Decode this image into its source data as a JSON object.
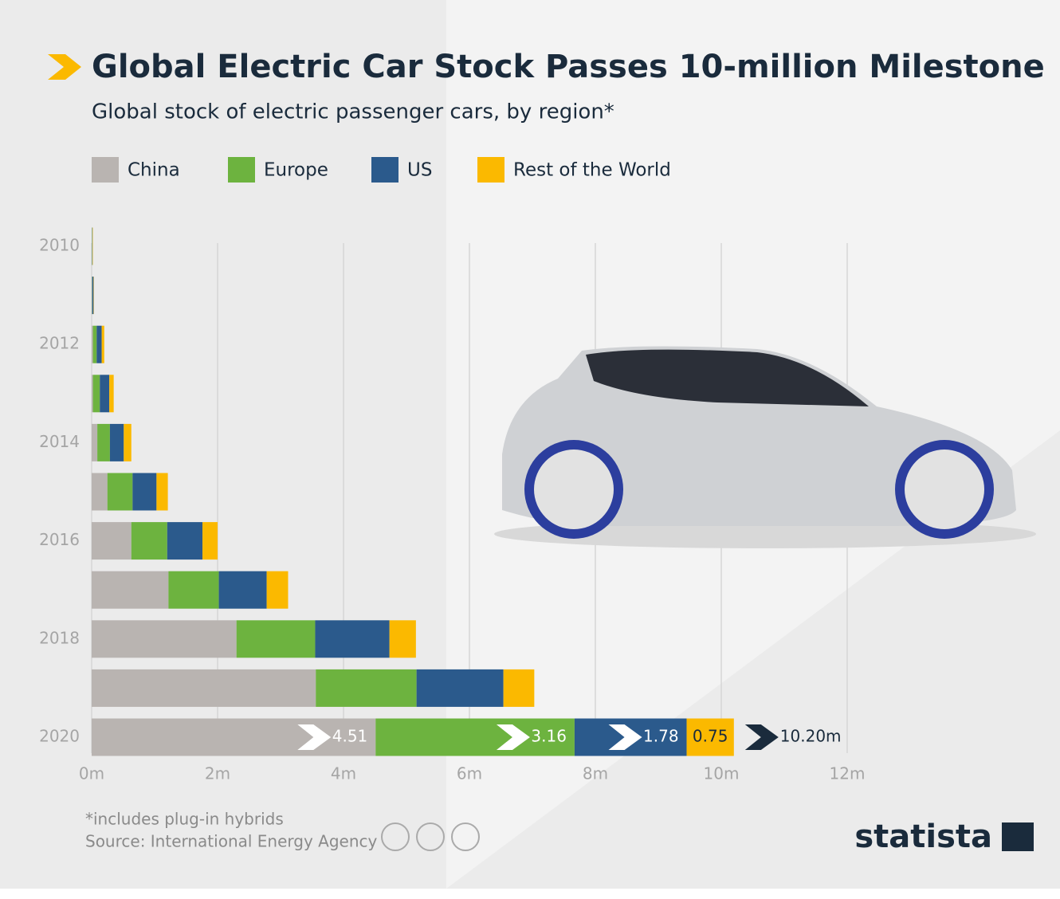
{
  "chart_data": {
    "type": "stacked-bar-horizontal",
    "title": "Global Electric Car Stock Passes 10-million Milestone",
    "subtitle": "Global stock of electric passenger cars, by region*",
    "categories": [
      "2010",
      null,
      "2012",
      null,
      "2014",
      null,
      "2016",
      null,
      "2018",
      null,
      "2020"
    ],
    "series": [
      {
        "name": "China",
        "color": "#b9b4b1",
        "values": [
          0.005,
          0.005,
          0.02,
          0.02,
          0.09,
          0.25,
          0.63,
          1.22,
          2.3,
          3.56,
          4.51
        ]
      },
      {
        "name": "Europe",
        "color": "#6db33f",
        "values": [
          0.005,
          0.005,
          0.06,
          0.11,
          0.2,
          0.4,
          0.57,
          0.8,
          1.25,
          1.6,
          3.16
        ]
      },
      {
        "name": "US",
        "color": "#2b5a8c",
        "values": [
          0.005,
          0.02,
          0.08,
          0.15,
          0.22,
          0.38,
          0.56,
          0.76,
          1.18,
          1.38,
          1.78
        ]
      },
      {
        "name": "Rest of the World",
        "color": "#fbb900",
        "values": [
          0.005,
          0.005,
          0.04,
          0.07,
          0.12,
          0.18,
          0.24,
          0.34,
          0.42,
          0.49,
          0.75
        ]
      }
    ],
    "total": {
      "value": 10.2,
      "label": "10.20m"
    },
    "xlim": [
      0,
      12
    ],
    "xticks": [
      {
        "value": 0,
        "label": "0m"
      },
      {
        "value": 2,
        "label": "2m"
      },
      {
        "value": 4,
        "label": "4m"
      },
      {
        "value": 6,
        "label": "6m"
      },
      {
        "value": 8,
        "label": "8m"
      },
      {
        "value": 10,
        "label": "10m"
      },
      {
        "value": 12,
        "label": "12m"
      }
    ],
    "grid": true,
    "footnote": "*includes plug-in hybrids",
    "source": "Source: International Energy Agency",
    "brand": "statista"
  }
}
